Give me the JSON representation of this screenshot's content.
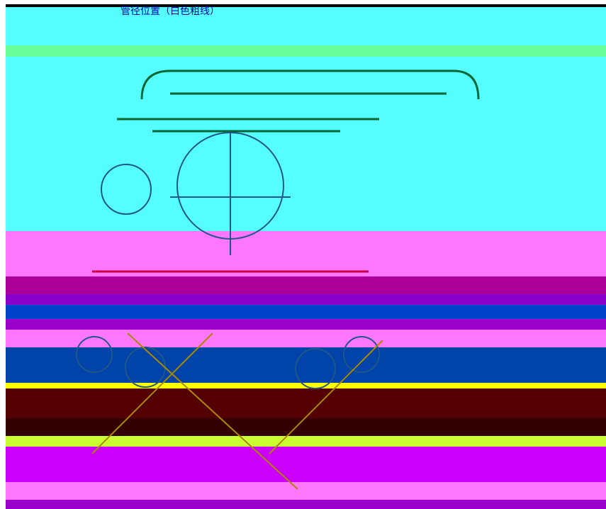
{
  "labels": {
    "top_left": "管径位置（白色粗线）"
  }
}
